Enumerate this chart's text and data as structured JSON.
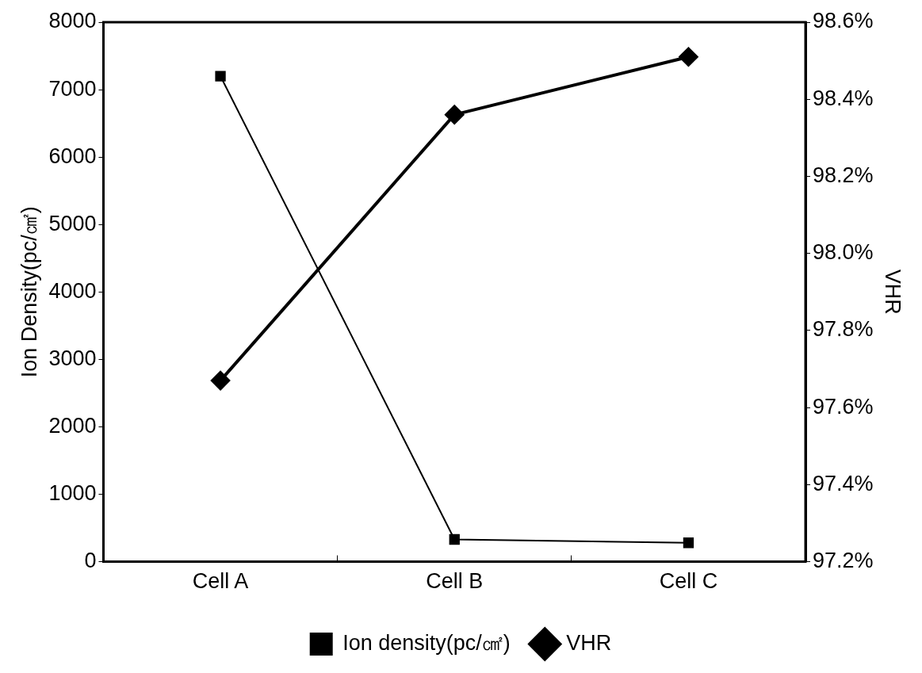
{
  "chart_data": {
    "type": "line",
    "categories": [
      "Cell A",
      "Cell B",
      "Cell C"
    ],
    "ylabel": "Ion Density(pc/㎠)",
    "y2label": "VHR",
    "series": [
      {
        "name": "Ion density(pc/㎠)",
        "color": "#000000",
        "values": [
          7200,
          330,
          280
        ],
        "marker": "square"
      },
      {
        "name": "VHR",
        "color": "#000000",
        "values": [
          97.67,
          98.36,
          98.51
        ],
        "axis": "y2",
        "marker": "diamond"
      }
    ],
    "ylim": [
      0,
      8000
    ],
    "yticks": [
      0,
      1000,
      2000,
      3000,
      4000,
      5000,
      6000,
      7000,
      8000
    ],
    "y2lim": [
      97.2,
      98.6
    ],
    "y2ticks": [
      {
        "value": 97.2,
        "label": "97.2%"
      },
      {
        "value": 97.4,
        "label": "97.4%"
      },
      {
        "value": 97.6,
        "label": "97.6%"
      },
      {
        "value": 97.8,
        "label": "97.8%"
      },
      {
        "value": 98.0,
        "label": "98.0%"
      },
      {
        "value": 98.2,
        "label": "98.2%"
      },
      {
        "value": 98.4,
        "label": "98.4%"
      },
      {
        "value": 98.6,
        "label": "98.6%"
      }
    ],
    "grid": false,
    "legend": "bottom",
    "line_style": "solid"
  }
}
